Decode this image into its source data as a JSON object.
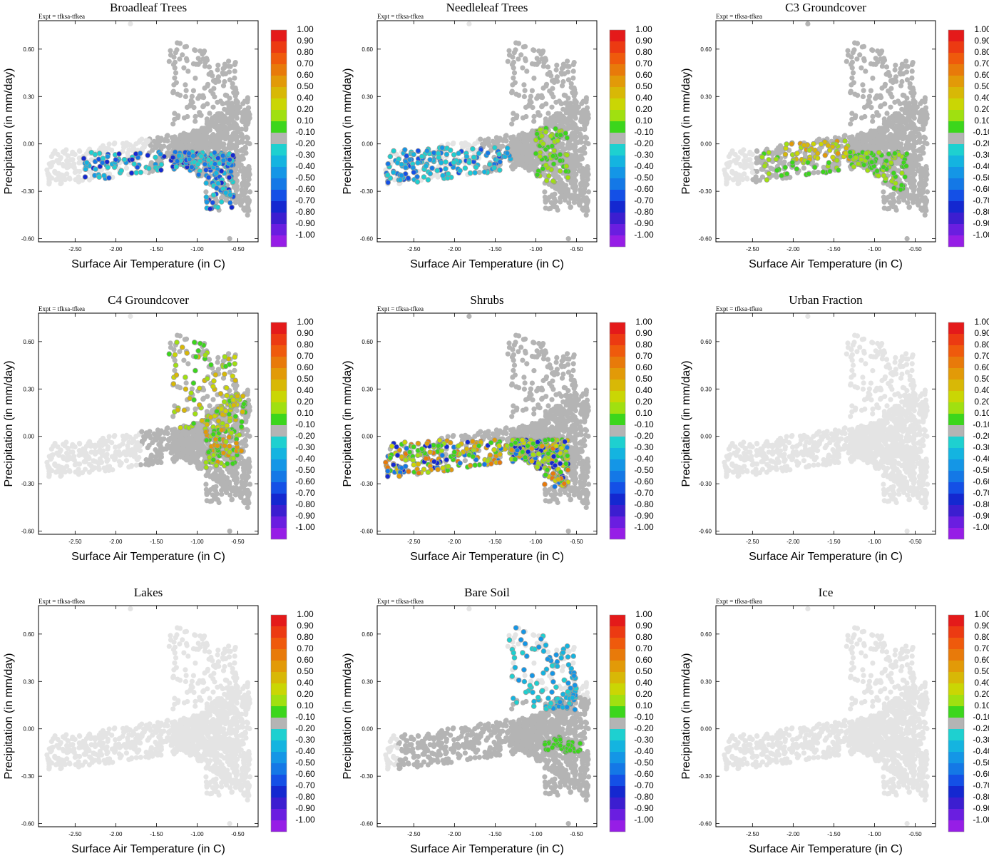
{
  "figure": {
    "type": "scatter-grid",
    "rows": 3,
    "cols": 3
  },
  "shared": {
    "xlabel": "Surface Air Temperature (in C)",
    "ylabel": "Precipitation (in mm/day)",
    "expt_label": "Expt = tfksa-tfkea",
    "xlim": [
      -2.95,
      -0.25
    ],
    "ylim": [
      -0.62,
      0.78
    ],
    "xticks": [
      "-2.50",
      "-2.00",
      "-1.50",
      "-1.00",
      "-0.50"
    ],
    "yticks": [
      "-0.60",
      "-0.30",
      "0.00",
      "0.30",
      "0.60"
    ],
    "colorbar": {
      "labels": [
        "1.00",
        "0.90",
        "0.80",
        "0.70",
        "0.60",
        "0.50",
        "0.40",
        "0.20",
        "0.10",
        "-0.10",
        "-0.20",
        "-0.30",
        "-0.40",
        "-0.50",
        "-0.60",
        "-0.70",
        "-0.80",
        "-0.90",
        "-1.00"
      ],
      "colors": [
        "#e41a1a",
        "#ec3a12",
        "#ef5a0c",
        "#e87a0a",
        "#e29a08",
        "#d8b806",
        "#cad604",
        "#a0e010",
        "#3cd61c",
        "#b4b4b4",
        "#1ed0d0",
        "#14b4e0",
        "#1496e6",
        "#1478e6",
        "#1450e6",
        "#1428d0",
        "#3c1ed0",
        "#6a1ee0",
        "#961ee6"
      ]
    },
    "colors": {
      "background_point": "#e4e4e4",
      "neutral_point": "#b4b4b4"
    }
  },
  "chart_data": [
    {
      "type": "scatter",
      "title": "Broadleaf Trees",
      "panel": "broadleaf",
      "xlabel": "Surface Air Temperature (in C)",
      "ylabel": "Precipitation (in mm/day)"
    },
    {
      "type": "scatter",
      "title": "Needleleaf Trees",
      "panel": "needleleaf",
      "xlabel": "Surface Air Temperature (in C)",
      "ylabel": "Precipitation (in mm/day)"
    },
    {
      "type": "scatter",
      "title": "C3 Groundcover",
      "panel": "c3",
      "xlabel": "Surface Air Temperature (in C)",
      "ylabel": "Precipitation (in mm/day)"
    },
    {
      "type": "scatter",
      "title": "C4 Groundcover",
      "panel": "c4",
      "xlabel": "Surface Air Temperature (in C)",
      "ylabel": "Precipitation (in mm/day)"
    },
    {
      "type": "scatter",
      "title": "Shrubs",
      "panel": "shrubs",
      "xlabel": "Surface Air Temperature (in C)",
      "ylabel": "Precipitation (in mm/day)"
    },
    {
      "type": "scatter",
      "title": "Urban Fraction",
      "panel": "urban",
      "xlabel": "Surface Air Temperature (in C)",
      "ylabel": "Precipitation (in mm/day)"
    },
    {
      "type": "scatter",
      "title": "Lakes",
      "panel": "lakes",
      "xlabel": "Surface Air Temperature (in C)",
      "ylabel": "Precipitation (in mm/day)"
    },
    {
      "type": "scatter",
      "title": "Bare Soil",
      "panel": "baresoil",
      "xlabel": "Surface Air Temperature (in C)",
      "ylabel": "Precipitation (in mm/day)"
    },
    {
      "type": "scatter",
      "title": "Ice",
      "panel": "ice",
      "xlabel": "Surface Air Temperature (in C)",
      "ylabel": "Precipitation (in mm/day)"
    }
  ],
  "cloud": {
    "base_points": [
      [
        -2.82,
        -0.22
      ],
      [
        -2.75,
        -0.18
      ],
      [
        -2.7,
        -0.12
      ],
      [
        -2.65,
        -0.2
      ],
      [
        -2.6,
        -0.15
      ],
      [
        -2.55,
        -0.1
      ],
      [
        -2.5,
        -0.18
      ],
      [
        -2.45,
        -0.12
      ],
      [
        -2.4,
        -0.08
      ],
      [
        -2.35,
        -0.14
      ],
      [
        -2.3,
        -0.1
      ],
      [
        -2.25,
        -0.16
      ],
      [
        -2.2,
        -0.06
      ],
      [
        -2.15,
        -0.12
      ],
      [
        -2.1,
        -0.08
      ],
      [
        -2.05,
        -0.04
      ],
      [
        -2.0,
        -0.1
      ],
      [
        -1.95,
        -0.06
      ],
      [
        -1.9,
        -0.02
      ],
      [
        -1.85,
        -0.08
      ],
      [
        -1.8,
        -0.04
      ],
      [
        -1.75,
        0.0
      ],
      [
        -1.7,
        -0.06
      ],
      [
        -1.65,
        -0.02
      ],
      [
        -1.6,
        0.02
      ],
      [
        -1.55,
        -0.04
      ],
      [
        -1.5,
        0.0
      ],
      [
        -1.45,
        -0.06
      ],
      [
        -1.4,
        0.02
      ],
      [
        -1.35,
        -0.02
      ],
      [
        -1.3,
        0.04
      ],
      [
        -1.25,
        -0.04
      ],
      [
        -1.2,
        0.0
      ],
      [
        -1.15,
        0.04
      ],
      [
        -1.1,
        -0.06
      ],
      [
        -1.05,
        0.02
      ],
      [
        -1.0,
        0.06
      ],
      [
        -0.95,
        -0.02
      ],
      [
        -0.9,
        0.08
      ],
      [
        -0.85,
        0.0
      ],
      [
        -0.8,
        0.12
      ],
      [
        -0.75,
        -0.06
      ],
      [
        -0.7,
        0.04
      ],
      [
        -0.65,
        0.16
      ],
      [
        -0.6,
        -0.1
      ],
      [
        -0.55,
        0.06
      ],
      [
        -0.5,
        -0.14
      ],
      [
        -0.45,
        0.02
      ],
      [
        -0.42,
        -0.2
      ],
      [
        -0.4,
        0.1
      ]
    ]
  }
}
